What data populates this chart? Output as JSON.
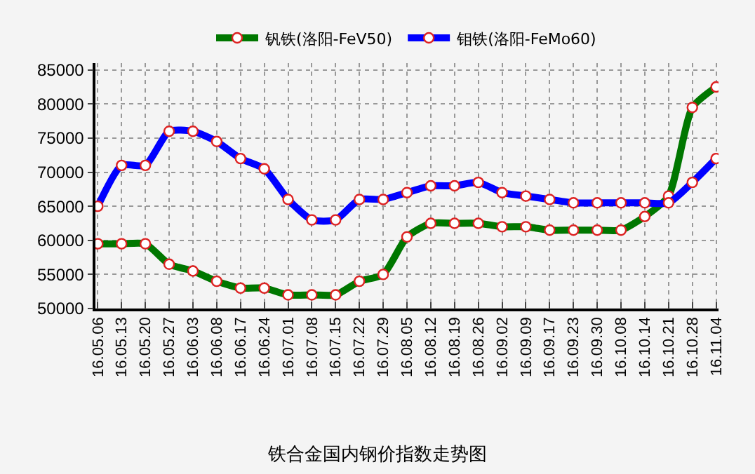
{
  "chart_data": {
    "type": "line",
    "title": "铁合金国内钢价指数走势图",
    "categories": [
      "16.05.06",
      "16.05.13",
      "16.05.20",
      "16.05.27",
      "16.06.03",
      "16.06.08",
      "16.06.17",
      "16.06.24",
      "16.07.01",
      "16.07.08",
      "16.07.15",
      "16.07.22",
      "16.07.29",
      "16.08.05",
      "16.08.12",
      "16.08.19",
      "16.08.26",
      "16.09.02",
      "16.09.09",
      "16.09.17",
      "16.09.23",
      "16.09.30",
      "16.10.08",
      "16.10.14",
      "16.10.21",
      "16.10.28",
      "16.11.04"
    ],
    "series": [
      {
        "name": "钒铁(洛阳-FeV50)",
        "color": "#007700",
        "values": [
          59500,
          59500,
          59500,
          56500,
          55500,
          54000,
          53000,
          53000,
          52000,
          52000,
          52000,
          54000,
          55000,
          60500,
          62500,
          62500,
          62500,
          62000,
          62000,
          61500,
          61500,
          61500,
          61500,
          63500,
          66500,
          79500,
          82500
        ]
      },
      {
        "name": "钼铁(洛阳-FeMo60)",
        "color": "#0000ff",
        "values": [
          65000,
          71000,
          71000,
          76000,
          76000,
          74500,
          72000,
          70500,
          66000,
          63000,
          63000,
          66000,
          66000,
          67000,
          68000,
          68000,
          68500,
          67000,
          66500,
          66000,
          65500,
          65500,
          65500,
          65500,
          65500,
          68500,
          72000
        ]
      }
    ],
    "ylim": [
      50000,
      86000
    ],
    "yticks": [
      50000,
      55000,
      60000,
      65000,
      70000,
      75000,
      80000,
      85000
    ],
    "grid": true,
    "legend": "top",
    "marker": "circle",
    "line_style": "solid"
  }
}
